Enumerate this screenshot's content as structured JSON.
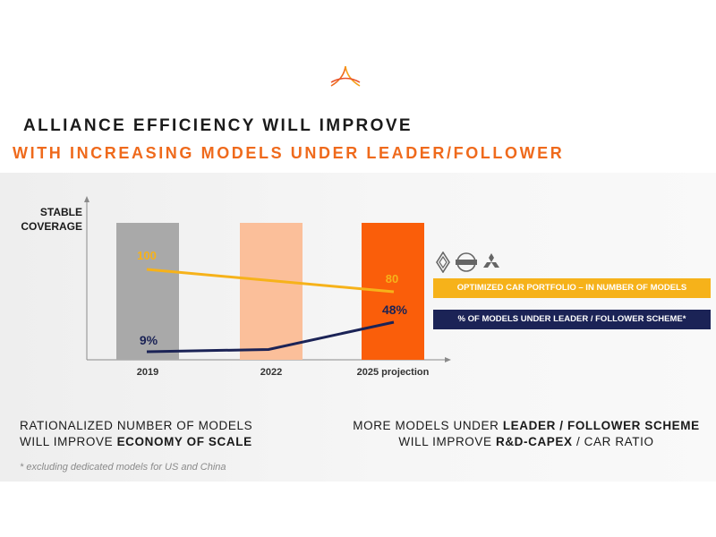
{
  "title": "ALLIANCE EFFICIENCY WILL IMPROVE",
  "subtitle": "WITH INCREASING MODELS UNDER LEADER/FOLLOWER",
  "y_axis_label": "STABLE\nCOVERAGE",
  "legend": {
    "portfolio": "OPTIMIZED CAR PORTFOLIO – IN NUMBER OF MODELS",
    "leader_follower": "% OF MODELS UNDER LEADER / FOLLOWER SCHEME*"
  },
  "brands": [
    "renault-logo-icon",
    "nissan-logo-icon",
    "mitsubishi-logo-icon"
  ],
  "bottom_left": {
    "line1": "RATIONALIZED NUMBER OF MODELS",
    "line2_prefix": "WILL IMPROVE ",
    "line2_bold": "ECONOMY OF SCALE"
  },
  "bottom_right": {
    "line1_prefix": "MORE MODELS UNDER ",
    "line1_bold": "LEADER / FOLLOWER SCHEME",
    "line2_prefix": "WILL IMPROVE ",
    "line2_bold": "R&D-CAPEX",
    "line2_suffix": " / CAR RATIO"
  },
  "footnote": "* excluding dedicated models for US and China",
  "colors": {
    "bar_2019": "#a9a9a9",
    "bar_2022": "#fbbf9a",
    "bar_2025": "#fa5e0a",
    "portfolio_line": "#f6b21a",
    "leader_line": "#1b2356",
    "accent": "#ef6a1c"
  },
  "chart_data": {
    "type": "line",
    "categories": [
      "2019",
      "2022",
      "2025 projection"
    ],
    "bars": {
      "description_label": "STABLE COVERAGE",
      "count": 3
    },
    "series": [
      {
        "name": "OPTIMIZED CAR PORTFOLIO – IN NUMBER OF MODELS",
        "values": [
          100,
          90,
          80
        ],
        "labels": [
          "100",
          "",
          "80"
        ]
      },
      {
        "name": "% OF MODELS UNDER LEADER / FOLLOWER SCHEME*",
        "values": [
          9,
          12,
          48
        ],
        "labels": [
          "9%",
          "",
          "48%"
        ]
      }
    ],
    "grid": false,
    "legend_position": "right"
  }
}
